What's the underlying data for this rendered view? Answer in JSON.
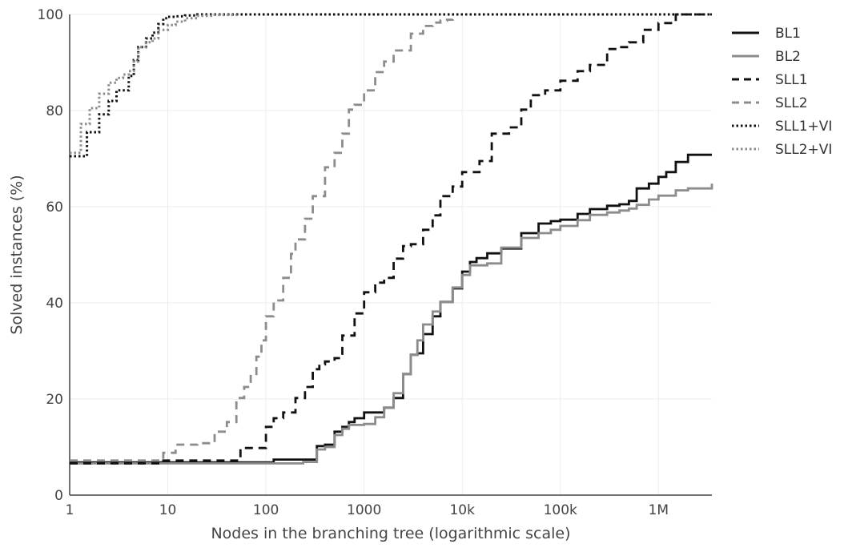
{
  "chart_data": {
    "type": "line",
    "title": "",
    "xlabel": "Nodes in the branching tree (logarithmic scale)",
    "ylabel": "Solved instances (%)",
    "xscale": "log",
    "xlim": [
      1,
      3500000
    ],
    "ylim": [
      0,
      100
    ],
    "grid": true,
    "legend_position": "right",
    "x_ticks": [
      {
        "value": 1,
        "label": "1"
      },
      {
        "value": 10,
        "label": "10"
      },
      {
        "value": 100,
        "label": "100"
      },
      {
        "value": 1000,
        "label": "1000"
      },
      {
        "value": 10000,
        "label": "10k"
      },
      {
        "value": 100000,
        "label": "100k"
      },
      {
        "value": 1000000,
        "label": "1M"
      }
    ],
    "y_ticks": [
      {
        "value": 0,
        "label": "0"
      },
      {
        "value": 20,
        "label": "20"
      },
      {
        "value": 40,
        "label": "40"
      },
      {
        "value": 60,
        "label": "60"
      },
      {
        "value": 80,
        "label": "80"
      },
      {
        "value": 100,
        "label": "100"
      }
    ],
    "series": [
      {
        "name": "BL1",
        "color": "#111111",
        "dash": "solid",
        "x": [
          1,
          100,
          120,
          300,
          330,
          400,
          500,
          600,
          700,
          800,
          1000,
          1300,
          1600,
          2000,
          2500,
          3000,
          3500,
          4000,
          5000,
          6000,
          8000,
          10000,
          12000,
          14000,
          18000,
          25000,
          40000,
          60000,
          80000,
          100000,
          150000,
          200000,
          300000,
          400000,
          500000,
          600000,
          800000,
          1000000,
          1200000,
          1500000,
          2000000,
          3500000
        ],
        "y": [
          6.8,
          6.8,
          7.4,
          7.4,
          10.2,
          10.5,
          13.2,
          14.2,
          15.2,
          16.0,
          17.2,
          17.2,
          18.2,
          20.2,
          25.2,
          29.2,
          29.5,
          33.5,
          37.2,
          40.2,
          43.0,
          46.5,
          48.5,
          49.3,
          50.3,
          51.3,
          54.5,
          56.5,
          57.0,
          57.3,
          58.5,
          59.5,
          60.2,
          60.5,
          61.2,
          63.8,
          64.8,
          66.2,
          67.2,
          69.3,
          70.8,
          70.8
        ]
      },
      {
        "name": "BL2",
        "color": "#8c8c8c",
        "dash": "solid",
        "x": [
          1,
          150,
          240,
          330,
          400,
          500,
          600,
          700,
          800,
          1000,
          1300,
          1600,
          2000,
          2500,
          3000,
          3500,
          4000,
          5000,
          6000,
          8000,
          10000,
          12000,
          14000,
          18000,
          25000,
          40000,
          60000,
          80000,
          100000,
          150000,
          200000,
          300000,
          400000,
          500000,
          600000,
          800000,
          1000000,
          1500000,
          2000000,
          3500000
        ],
        "y": [
          6.6,
          6.6,
          6.9,
          9.5,
          10.0,
          12.5,
          13.8,
          14.6,
          14.6,
          14.8,
          16.2,
          18.2,
          21.2,
          25.2,
          29.2,
          32.2,
          35.5,
          38.2,
          40.2,
          43.2,
          45.8,
          47.8,
          47.8,
          48.2,
          51.5,
          53.5,
          54.5,
          55.2,
          56.0,
          57.2,
          58.3,
          58.8,
          59.2,
          59.6,
          60.4,
          61.5,
          62.3,
          63.4,
          63.8,
          64.8
        ]
      },
      {
        "name": "SLL1",
        "color": "#111111",
        "dash": "10,7",
        "x": [
          1,
          8,
          9,
          50,
          55,
          90,
          100,
          120,
          150,
          200,
          250,
          300,
          350,
          400,
          500,
          600,
          800,
          1000,
          1300,
          1600,
          2000,
          2500,
          3000,
          4000,
          5000,
          6000,
          8000,
          10000,
          15000,
          20000,
          30000,
          40000,
          50000,
          70000,
          100000,
          150000,
          200000,
          300000,
          400000,
          500000,
          700000,
          1000000,
          1500000,
          3500000
        ],
        "y": [
          6.6,
          6.6,
          7.2,
          7.2,
          9.8,
          9.8,
          14.2,
          16.0,
          17.2,
          20.2,
          22.5,
          26.2,
          27.2,
          27.8,
          28.5,
          33.2,
          37.8,
          42.2,
          44.2,
          45.2,
          49.2,
          51.8,
          52.2,
          55.2,
          58.2,
          62.2,
          64.2,
          67.2,
          69.5,
          75.2,
          76.5,
          80.2,
          83.2,
          84.2,
          86.2,
          88.2,
          89.5,
          92.8,
          93.2,
          94.2,
          96.8,
          98.2,
          100,
          100
        ]
      },
      {
        "name": "SLL2",
        "color": "#8c8c8c",
        "dash": "10,7",
        "x": [
          1,
          5,
          9,
          12,
          20,
          30,
          40,
          50,
          60,
          70,
          80,
          90,
          100,
          120,
          150,
          180,
          200,
          250,
          300,
          400,
          500,
          600,
          700,
          800,
          1000,
          1300,
          1600,
          2000,
          3000,
          4000,
          5000,
          6000,
          7000,
          8000
        ],
        "y": [
          7.2,
          7.2,
          8.8,
          10.5,
          10.8,
          13.2,
          15.2,
          20.2,
          22.5,
          25.2,
          28.8,
          32.2,
          37.2,
          40.5,
          45.2,
          50.2,
          53.2,
          57.5,
          62.2,
          68.2,
          71.2,
          75.2,
          80.2,
          81.2,
          84.2,
          88.0,
          90.2,
          92.5,
          96.0,
          97.6,
          98.3,
          98.7,
          98.9,
          99.0
        ]
      },
      {
        "name": "SLL1+VI",
        "color": "#111111",
        "dash": "2.5,3",
        "x": [
          1,
          1.5,
          2,
          2.5,
          3,
          4,
          4.5,
          5,
          6,
          7,
          8,
          9,
          10,
          12,
          15,
          20,
          50,
          3500000
        ],
        "y": [
          70.5,
          75.5,
          79.2,
          82.0,
          84.2,
          87.2,
          90.5,
          93.2,
          95.0,
          96.2,
          98.0,
          99.2,
          99.5,
          99.6,
          99.8,
          100,
          100,
          100
        ]
      },
      {
        "name": "SLL2+VI",
        "color": "#8c8c8c",
        "dash": "2.5,3",
        "x": [
          1,
          1.3,
          1.6,
          2,
          2.5,
          3,
          3.5,
          4,
          4.5,
          5,
          6,
          7,
          8,
          10,
          12,
          15,
          20,
          30,
          50
        ],
        "y": [
          71.2,
          77.2,
          80.5,
          83.5,
          85.8,
          86.8,
          87.5,
          88.2,
          90.2,
          93.2,
          94.2,
          95.0,
          96.8,
          97.8,
          98.5,
          99.2,
          99.7,
          99.9,
          100
        ]
      }
    ]
  }
}
